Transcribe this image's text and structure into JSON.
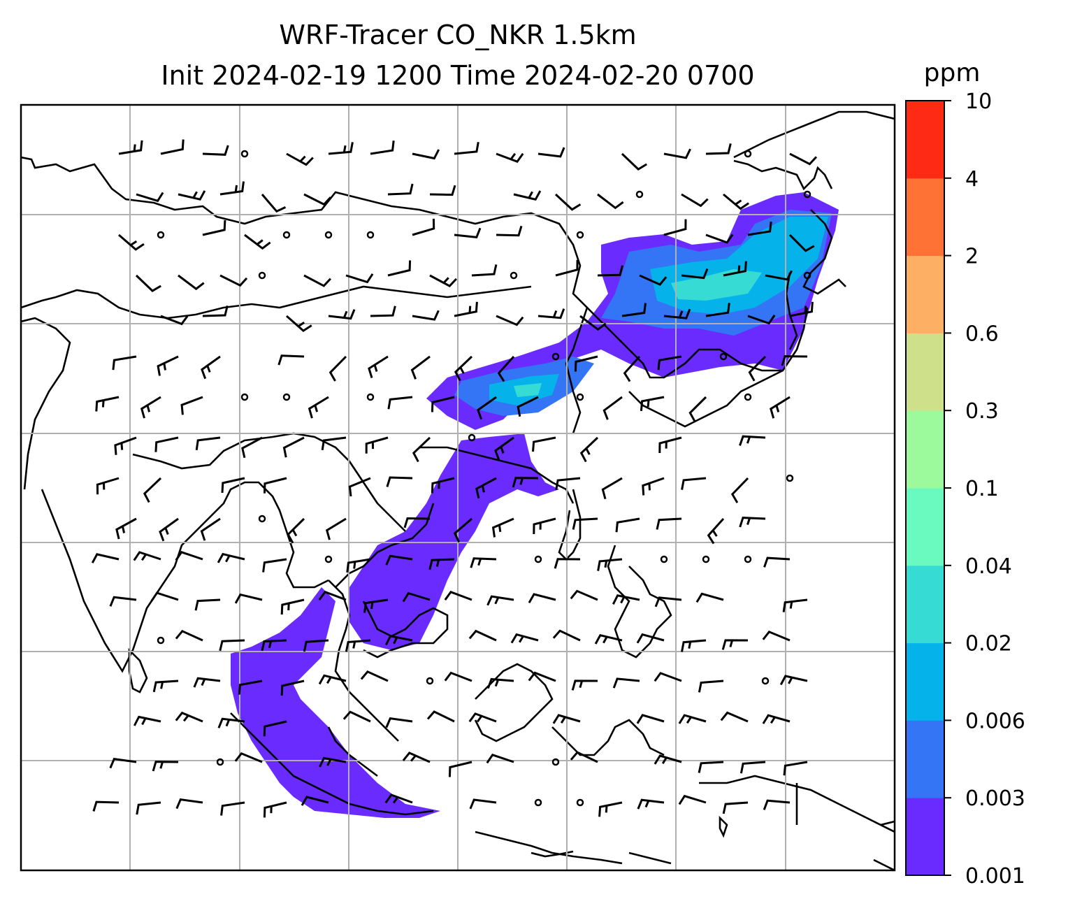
{
  "title": {
    "line1": "WRF-Tracer CO_NKR 1.5km",
    "line2": "Init 2024-02-19 1200 Time 2024-02-20 0700"
  },
  "colorbar": {
    "unit": "ppm",
    "levels": [
      "0.001",
      "0.003",
      "0.006",
      "0.02",
      "0.04",
      "0.1",
      "0.3",
      "0.6",
      "2",
      "4",
      "10"
    ],
    "colors": [
      "#6a2bff",
      "#3375f5",
      "#05b2ea",
      "#36dcd4",
      "#6afabf",
      "#9cfa9c",
      "#cfe08a",
      "#fdb064",
      "#ff7236",
      "#ff2a14"
    ]
  },
  "map": {
    "gridlines": true,
    "coastline_color": "#000000",
    "grid_color": "#b0b0b0",
    "plume_colors": {
      "low": "#6a2bff",
      "mid": "#3375f5",
      "high": "#05b2ea",
      "peak": "#36dcd4"
    },
    "barb_color": "#000000"
  }
}
